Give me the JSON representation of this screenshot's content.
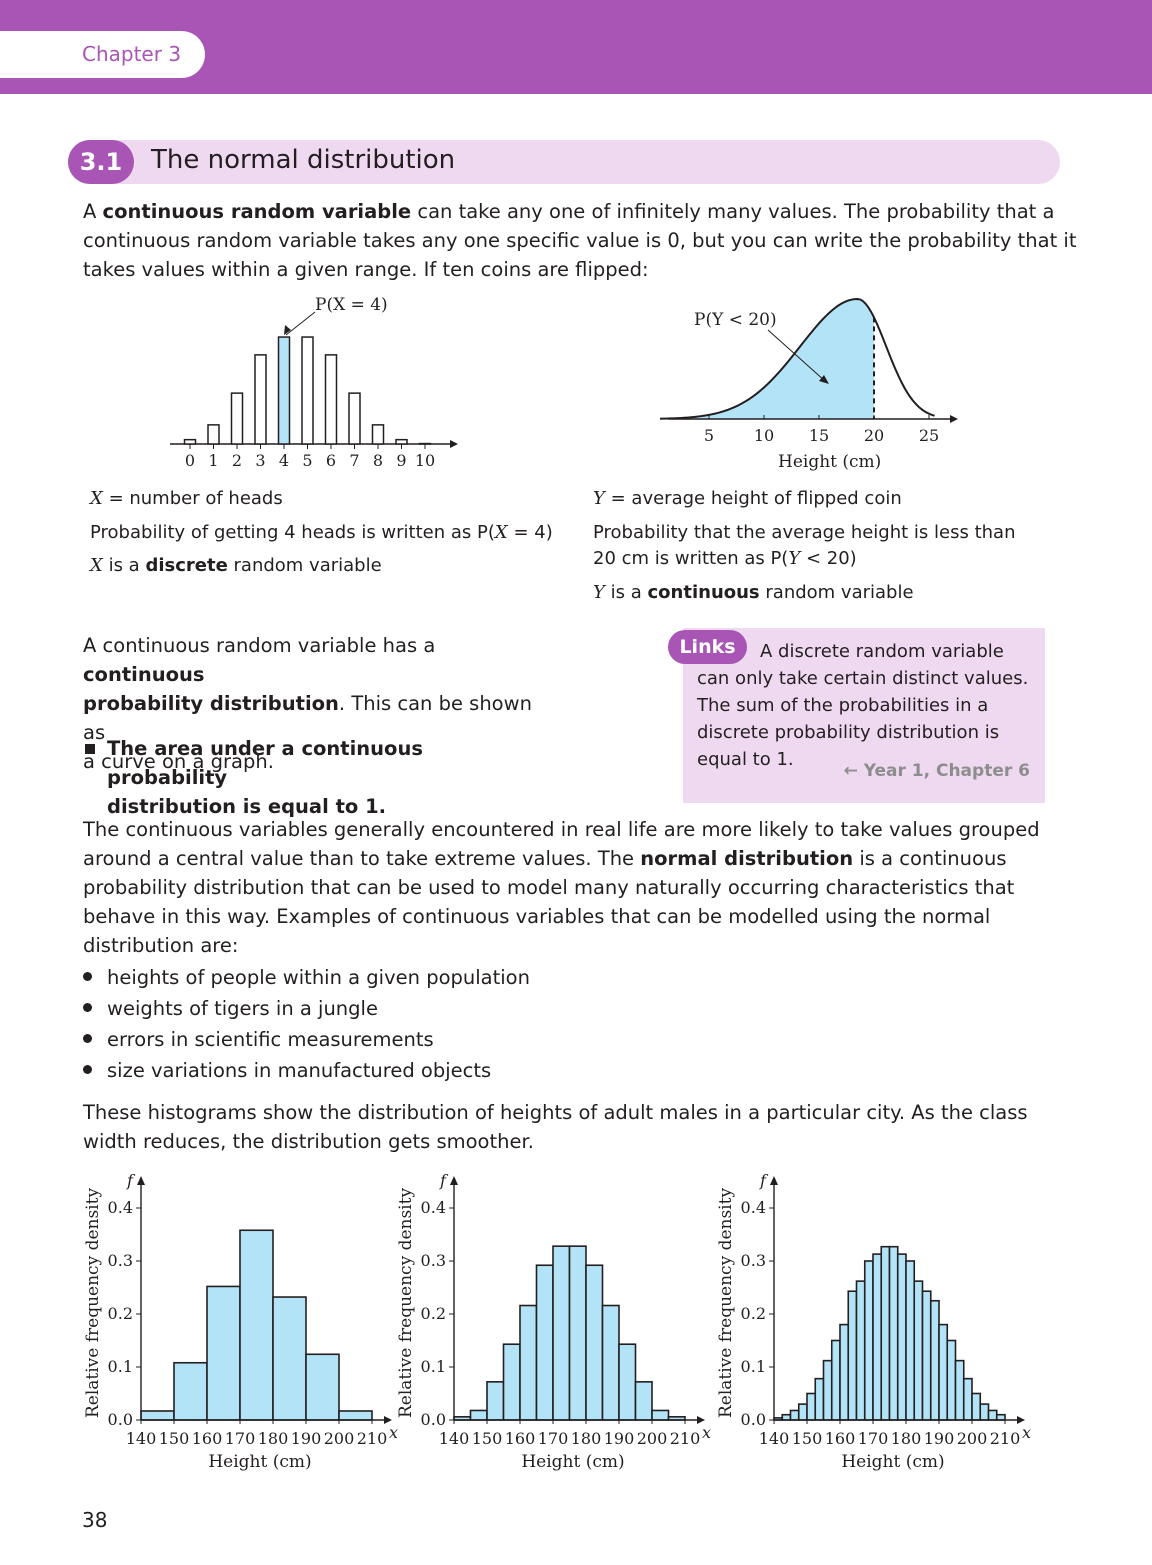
{
  "header": {
    "chapter_label": "Chapter 3",
    "section_number": "3.1",
    "section_title": "The normal distribution"
  },
  "intro": {
    "p1": "can take any one of infinitely many values. The probability that a",
    "term": "continuous random variable",
    "lead": "A",
    "p2": "continuous random variable takes any one specific value is 0, but you can write the probability that it",
    "p3": "takes values within a given range. If ten coins are flipped:"
  },
  "left_chart": {
    "annotation": "P(X = 4)",
    "captions": {
      "line1_var": "X",
      "line1_rest": "= number of heads",
      "line2_a": "Probability of getting 4 heads is written as P(",
      "line2_var": "X",
      "line2_b": "= 4)",
      "line3_var": "X",
      "line3_a": "is a",
      "line3_bold": "discrete",
      "line3_b": "random variable"
    }
  },
  "right_chart": {
    "annotation": "P(Y < 20)",
    "xlabel": "Height (cm)",
    "captions": {
      "line1_var": "Y",
      "line1_rest": "= average height of flipped coin",
      "line2": "Probability that the average height is less than",
      "line3_a": "20 cm is written as P(",
      "line3_var": "Y",
      "line3_b": "< 20)",
      "line4_var": "Y",
      "line4_a": "is a",
      "line4_bold": "continuous",
      "line4_b": "random variable"
    }
  },
  "mid": {
    "a1": "A continuous random variable has a",
    "b1": "continuous",
    "b2": "probability distribution",
    "a2": ". This can be shown as",
    "a3": "a curve on a graph.",
    "key_point_1": "The area under a continuous probability",
    "key_point_2": "distribution is equal to 1."
  },
  "links_box": {
    "tag": "Links",
    "text": "A discrete random variable can only take certain distinct values. The sum of the probabilities in a discrete probability distribution is equal to 1.",
    "ref": "← Year 1, Chapter 6"
  },
  "normal_para": {
    "l1": "The continuous variables generally encountered in real life are more likely to take values grouped",
    "l2a": "around a central value than to take extreme values. The",
    "l2b": "normal distribution",
    "l2c": "is a continuous",
    "l3": "probability distribution that can be used to model many naturally occurring characteristics that",
    "l4": "behave in this way. Examples of continuous variables that can be modelled using the normal",
    "l5": "distribution are:"
  },
  "examples": [
    "heights of people within a given population",
    "weights of tigers in a jungle",
    "errors in scientific measurements",
    "size variations in manufactured objects"
  ],
  "histo_para": {
    "l1": "These histograms show the distribution of heights of adult males in a particular city. As the class",
    "l2": "width reduces, the distribution gets smoother."
  },
  "page_number": "38",
  "colors": {
    "accent": "#a855b5",
    "section_bg": "#efd9f0",
    "bar_fill": "#b3e3f7"
  },
  "chart_data": [
    {
      "type": "bar",
      "categories": [
        "0",
        "1",
        "2",
        "3",
        "4",
        "5",
        "6",
        "7",
        "8",
        "9",
        "10"
      ],
      "values": [
        0.01,
        0.044,
        0.117,
        0.205,
        0.246,
        0.246,
        0.205,
        0.117,
        0.044,
        0.01,
        0.001
      ],
      "highlighted": "4",
      "annotation": "P(X = 4)"
    },
    {
      "type": "area",
      "xlabel": "Height (cm)",
      "xticks": [
        5,
        10,
        15,
        20,
        25
      ],
      "shaded_below": 20,
      "annotation": "P(Y < 20)"
    },
    {
      "type": "bar",
      "xlabel": "Height (cm)",
      "ylabel": "Relative frequency density",
      "y_axis_symbol": "f",
      "x_axis_symbol": "x",
      "xticks": [
        "140",
        "150",
        "160",
        "170",
        "180",
        "190",
        "200",
        "210"
      ],
      "yticks": [
        "0.0",
        "0.1",
        "0.2",
        "0.3",
        "0.4"
      ],
      "bin_width": 10,
      "bins": [
        140,
        150,
        160,
        170,
        180,
        190,
        200
      ],
      "values": [
        0.017,
        0.108,
        0.252,
        0.358,
        0.232,
        0.124,
        0.017
      ]
    },
    {
      "type": "bar",
      "xlabel": "Height (cm)",
      "ylabel": "Relative frequency density",
      "y_axis_symbol": "f",
      "x_axis_symbol": "x",
      "xticks": [
        "140",
        "150",
        "160",
        "170",
        "180",
        "190",
        "200",
        "210"
      ],
      "yticks": [
        "0.0",
        "0.1",
        "0.2",
        "0.3",
        "0.4"
      ],
      "bin_width": 5,
      "bins": [
        140,
        145,
        150,
        155,
        160,
        165,
        170,
        175,
        180,
        185,
        190,
        195,
        200,
        205
      ],
      "values": [
        0.006,
        0.018,
        0.072,
        0.143,
        0.216,
        0.292,
        0.328,
        0.328,
        0.292,
        0.216,
        0.143,
        0.072,
        0.018,
        0.006
      ]
    },
    {
      "type": "bar",
      "xlabel": "Height (cm)",
      "ylabel": "Relative frequency density",
      "y_axis_symbol": "f",
      "x_axis_symbol": "x",
      "xticks": [
        "140",
        "150",
        "160",
        "170",
        "180",
        "190",
        "200",
        "210"
      ],
      "yticks": [
        "0.0",
        "0.1",
        "0.2",
        "0.3",
        "0.4"
      ],
      "bin_width": 2.5,
      "bins": [
        140,
        142.5,
        145,
        147.5,
        150,
        152.5,
        155,
        157.5,
        160,
        162.5,
        165,
        167.5,
        170,
        172.5,
        175,
        177.5,
        180,
        182.5,
        185,
        187.5,
        190,
        192.5,
        195,
        197.5,
        200,
        202.5,
        205,
        207.5
      ],
      "values": [
        0.004,
        0.01,
        0.018,
        0.03,
        0.05,
        0.078,
        0.112,
        0.15,
        0.18,
        0.243,
        0.262,
        0.3,
        0.313,
        0.327,
        0.327,
        0.313,
        0.3,
        0.262,
        0.243,
        0.225,
        0.18,
        0.15,
        0.112,
        0.078,
        0.05,
        0.03,
        0.018,
        0.01
      ]
    }
  ]
}
